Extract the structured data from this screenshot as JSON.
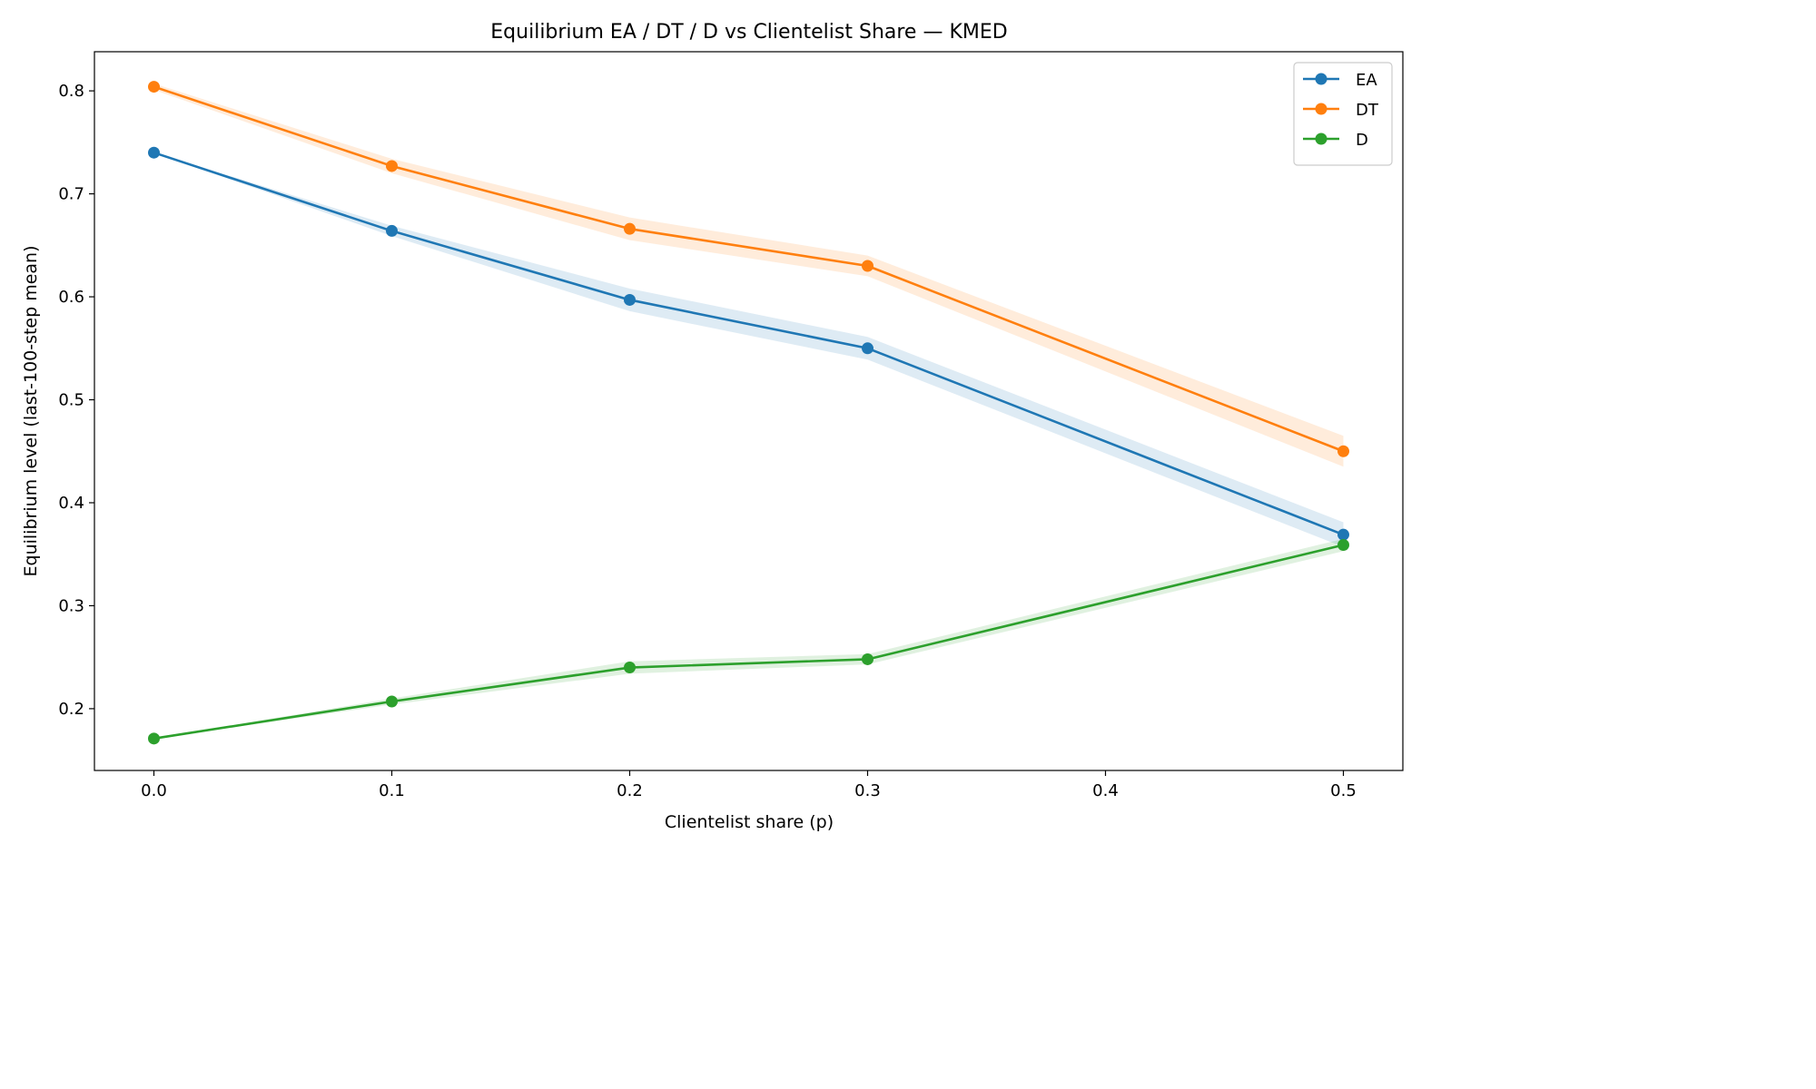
{
  "chart_data": {
    "type": "line",
    "title": "Equilibrium EA / DT / D vs Clientelist Share — KMED",
    "xlabel": "Clientelist share (p)",
    "ylabel": "Equilibrium level (last-100-step mean)",
    "x": [
      0.0,
      0.1,
      0.2,
      0.3,
      0.5
    ],
    "xlim": [
      -0.025,
      0.525
    ],
    "ylim": [
      0.14,
      0.838
    ],
    "xticks": [
      0.0,
      0.1,
      0.2,
      0.3,
      0.4,
      0.5
    ],
    "xtick_labels": [
      "0.0",
      "0.1",
      "0.2",
      "0.3",
      "0.4",
      "0.5"
    ],
    "yticks": [
      0.2,
      0.3,
      0.4,
      0.5,
      0.6,
      0.7,
      0.8
    ],
    "ytick_labels": [
      "0.2",
      "0.3",
      "0.4",
      "0.5",
      "0.6",
      "0.7",
      "0.8"
    ],
    "grid": false,
    "legend_position": "top-right",
    "series": [
      {
        "name": "EA",
        "color": "#1f77b4",
        "values": [
          0.74,
          0.664,
          0.597,
          0.55,
          0.369
        ],
        "lower": [
          0.74,
          0.659,
          0.586,
          0.539,
          0.357
        ],
        "upper": [
          0.74,
          0.669,
          0.608,
          0.561,
          0.381
        ]
      },
      {
        "name": "DT",
        "color": "#ff7f0e",
        "values": [
          0.804,
          0.727,
          0.666,
          0.63,
          0.45
        ],
        "lower": [
          0.801,
          0.72,
          0.655,
          0.62,
          0.435
        ],
        "upper": [
          0.807,
          0.734,
          0.677,
          0.64,
          0.465
        ]
      },
      {
        "name": "D",
        "color": "#2ca02c",
        "values": [
          0.171,
          0.207,
          0.24,
          0.248,
          0.359
        ],
        "lower": [
          0.171,
          0.204,
          0.234,
          0.243,
          0.353
        ],
        "upper": [
          0.171,
          0.21,
          0.246,
          0.253,
          0.365
        ]
      }
    ]
  }
}
